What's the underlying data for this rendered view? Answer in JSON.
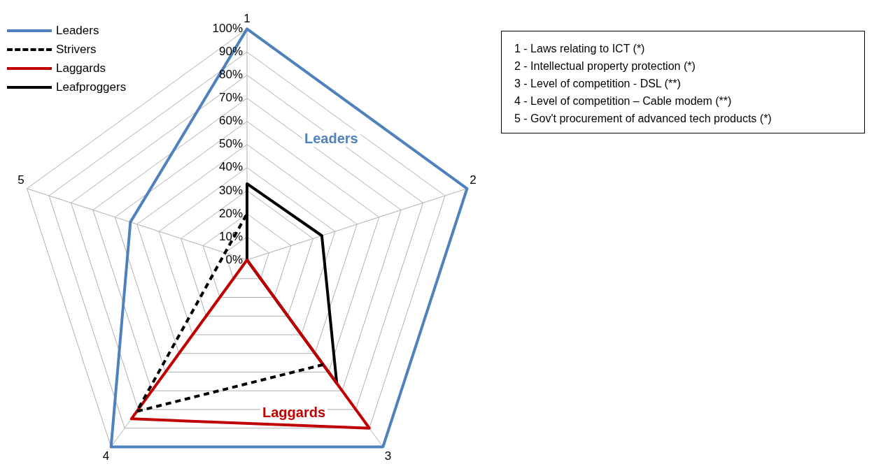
{
  "chart_data": {
    "type": "radar",
    "categories": [
      "1",
      "2",
      "3",
      "4",
      "5"
    ],
    "series": [
      {
        "name": "Leaders",
        "color": "#4f81bd",
        "values": [
          100,
          100,
          100,
          100,
          53
        ]
      },
      {
        "name": "Strivers",
        "color": "#000000",
        "line_style": "dashed",
        "values": [
          20,
          null,
          56,
          81,
          10
        ]
      },
      {
        "name": "Laggards",
        "color": "#c00000",
        "values": [
          0,
          0,
          90,
          85,
          0
        ]
      },
      {
        "name": "Leafproggers",
        "color": "#000000",
        "values": [
          33,
          34,
          66,
          0,
          0
        ]
      }
    ],
    "ylim": [
      0,
      100
    ],
    "yticks": [
      {
        "value": 0,
        "label": "0%"
      },
      {
        "value": 10,
        "label": "10%"
      },
      {
        "value": 20,
        "label": "20%"
      },
      {
        "value": 30,
        "label": "30%"
      },
      {
        "value": 40,
        "label": "40%"
      },
      {
        "value": 50,
        "label": "50%"
      },
      {
        "value": 60,
        "label": "60%"
      },
      {
        "value": 70,
        "label": "70%"
      },
      {
        "value": 80,
        "label": "80%"
      },
      {
        "value": 90,
        "label": "90%"
      },
      {
        "value": 100,
        "label": "100%"
      }
    ],
    "grid": true,
    "legend": "top left",
    "marker": "none",
    "line_style": "solid",
    "annotations": [
      "Leaders",
      "Laggards",
      "1 - Laws relating to ICT (*)",
      "2 - Intellectual property protection (*)",
      "3 - Level of competition - DSL (**)",
      "4 - Level of competition – Cable modem (**)",
      "5 - Gov't procurement of advanced tech products (*)"
    ]
  }
}
